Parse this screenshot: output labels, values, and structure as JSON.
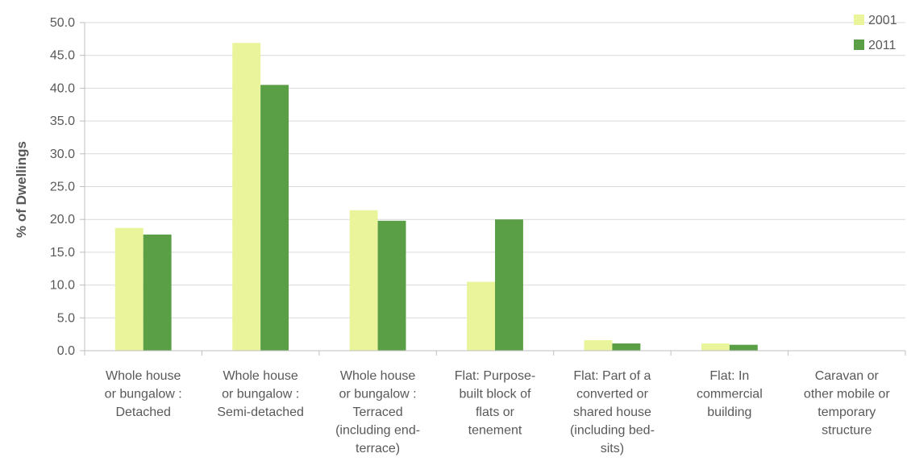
{
  "chart_data": {
    "type": "bar",
    "title": "",
    "xlabel": "",
    "ylabel": "% of Dwellings",
    "ylim": [
      0,
      50
    ],
    "yticks": [
      "0.0",
      "5.0",
      "10.0",
      "15.0",
      "20.0",
      "25.0",
      "30.0",
      "35.0",
      "40.0",
      "45.0",
      "50.0"
    ],
    "grid": true,
    "legend_position": "top-right",
    "categories": [
      "Whole house or bungalow : Detached",
      "Whole house or bungalow : Semi-detached",
      "Whole house or bungalow : Terraced (including end-terrace)",
      "Flat: Purpose-built block of flats or tenement",
      "Flat: Part of a converted or shared house (including bed-sits)",
      "Flat: In commercial building",
      "Caravan or other mobile or temporary structure"
    ],
    "category_lines": [
      [
        "Whole house",
        "or bungalow :",
        "Detached"
      ],
      [
        "Whole house",
        "or bungalow :",
        "Semi-detached"
      ],
      [
        "Whole house",
        "or bungalow :",
        "Terraced",
        "(including end-",
        "terrace)"
      ],
      [
        "Flat: Purpose-",
        "built block of",
        "flats or",
        "tenement"
      ],
      [
        "Flat: Part of a",
        "converted or",
        "shared house",
        "(including bed-",
        "sits)"
      ],
      [
        "Flat: In",
        "commercial",
        "building"
      ],
      [
        "Caravan or",
        "other mobile or",
        "temporary",
        "structure"
      ]
    ],
    "series": [
      {
        "name": "2001",
        "color": "#eaf59b",
        "values": [
          18.7,
          46.9,
          21.4,
          10.5,
          1.6,
          1.1,
          0.0
        ]
      },
      {
        "name": "2011",
        "color": "#5a9e45",
        "values": [
          17.7,
          40.5,
          19.8,
          20.0,
          1.1,
          0.9,
          0.0
        ]
      }
    ]
  }
}
